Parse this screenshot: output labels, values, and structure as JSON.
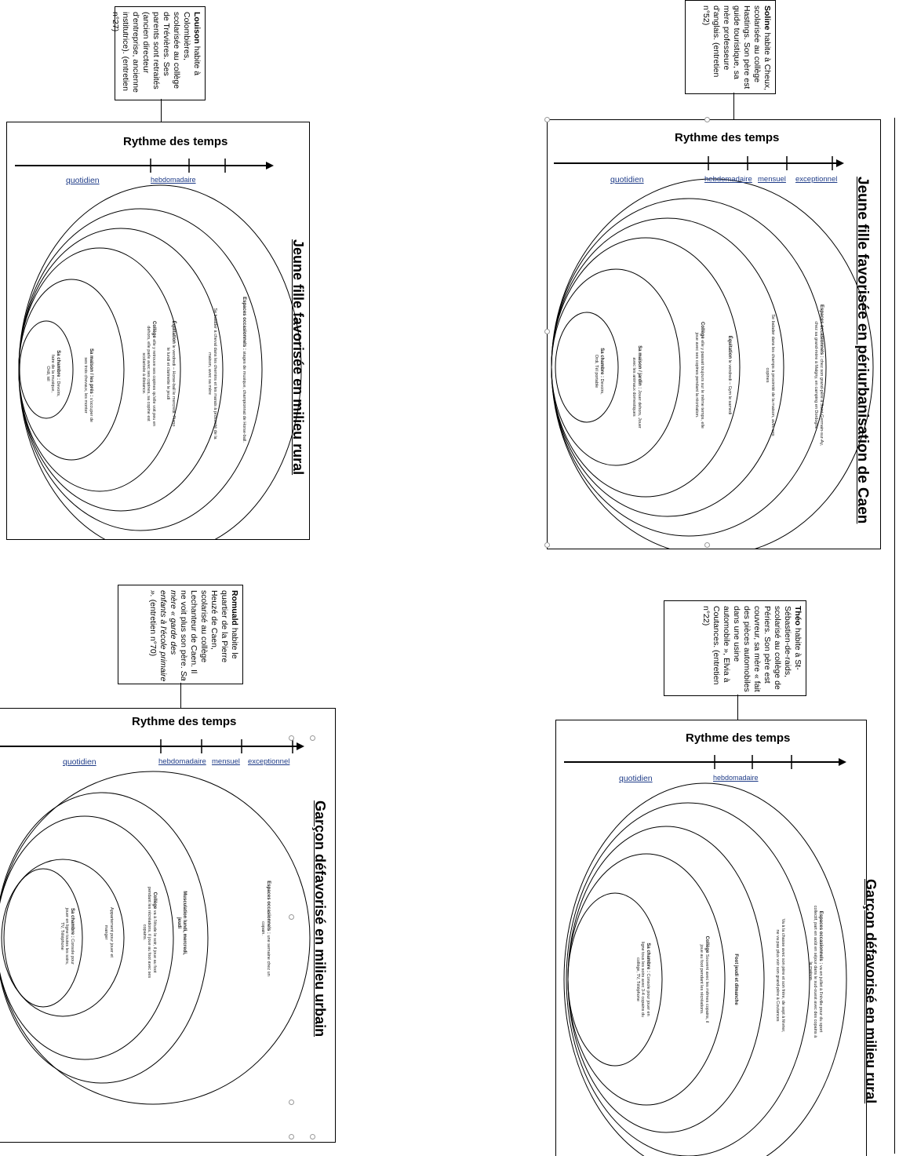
{
  "diagram_heading": "Rythme des temps",
  "scale_labels": {
    "daily": "quotidien",
    "weekly": "hebdomadaire",
    "monthly": "mensuel",
    "exceptional": "exceptionnel"
  },
  "panels": [
    {
      "id": "rural-girl",
      "title": "Jeune fille favorisée en milieu rural",
      "info": {
        "name": "Louison",
        "lines": [
          "habite à Colombières, scolarisée au collège de Trévières.",
          "Ses parents sont retraités (ancien directeur d'entreprise, ancienne institutrice).",
          "(entretien n°27)"
        ]
      },
      "rings": [
        {
          "title": "Espaces occasionnels :",
          "text": "stages de musique, championnat de Horse-ball."
        },
        {
          "title": "",
          "text": "Se balader à cheval dans les chemins et les marais à proximité de la maison, avec sa mère"
        },
        {
          "title": "Équitation",
          "text": "le vendredi – Horse-ball le mercredi. Piano le lundi et clarinette le jeudi"
        },
        {
          "title": "Collège",
          "text": "elle y retrouve ses copines qu'elle voit peu en dehors, elle parle avec ses copines, sa copine est scolarisée à distance."
        },
        {
          "title": "Sa maison / les prés :",
          "text": "s'occuper de ses trois chevaux, les monter"
        },
        {
          "title": "Sa chambre :",
          "text": "Devoirs, faire de la musique, Ordi, tél"
        }
      ]
    },
    {
      "id": "periurban-girl",
      "title": "Jeune fille favorisée en périurbanisation de Caen",
      "info": {
        "name": "Soline",
        "lines": [
          "habite à Cheux, scolarisée au collège Hastings.",
          "Son père est guide touristique, sa mère professeure d'anglais.",
          "(entretien n°52)"
        ]
      },
      "rings": [
        {
          "title": "Espaces occasionnels :",
          "text": "chez son grand-père à Saint-Germain-sur-Ay, chez sa grand-mère à Malgny, en camping en Dordogne"
        },
        {
          "title": "",
          "text": "Se balader dans les champs à proximité de la maison, avec ses copines"
        },
        {
          "title": "Équitation",
          "text": "le vendredi – Gym le samedi"
        },
        {
          "title": "Collège",
          "text": "elle y passait toujours sur le même temps, elle joue avec ses copines pendant la récréation."
        },
        {
          "title": "Sa maison / jardin :",
          "text": "Jouer dehors, Jouer avec les animaux domestiques"
        },
        {
          "title": "Sa chambre :",
          "text": "Devoirs, Ordi, Tél portable"
        }
      ]
    },
    {
      "id": "urban-boy",
      "title": "Garçon défavorisé en milieu urbain",
      "info": {
        "name": "Romuald",
        "lines": [
          "habite le quartier de la Pierre Heuzé de Caen, scolarisé au collège Lechanteur de Caen.",
          "Il ne voit plus son père.",
          "Sa mère « garde des enfants à l'école primaire ».",
          "(entretien n°70)"
        ]
      },
      "rings": [
        {
          "title": "Espaces occasionnels :",
          "text": "une semaine chez un copain."
        },
        {
          "title": "Musculation lundi, mercredi, jeudi",
          "text": ""
        },
        {
          "title": "Collège",
          "text": "va à l'étude le soir, il joue au foot pendant les récréations, il joue au foot avec ses copains."
        },
        {
          "title": "",
          "text": "Appartement pour jouer et manger"
        },
        {
          "title": "Sa chambre :",
          "text": "Console pour jouer en ligne toutes les soirs, TV, Téléphone"
        }
      ]
    },
    {
      "id": "rural-boy",
      "title": "Garçon défavorisé en milieu rural",
      "info": {
        "name": "Théo",
        "lines": [
          "habite à St-Sébastien-de-raids, scolarisé au collège de Périers.",
          "Son père est couvreur, sa mère « fait des pièces automobiles dans une usine automobile », Elvia à Coutances.",
          "(entretien n°22)"
        ]
      },
      "rings": [
        {
          "title": "Espaces occasionnels :",
          "text": "va en juillet à Fréville pour du sport collectif, part en août en séjour dans le sud-ouest avec des copains à la maison."
        },
        {
          "title": "",
          "text": "Va à la chasse avec son père et son frère, de sept à février, ne va pas plus voir son grand-père à Coutances"
        },
        {
          "title": "Foot jeudi et dimanche",
          "text": ""
        },
        {
          "title": "Collège",
          "text": "Souvent avec les mêmes copains, il joue au foot pendant les récréations."
        },
        {
          "title": "Sa chambre :",
          "text": "Console pour jouer en ligne tous les soirs avec 3-4 copains du collège, TV, Téléphone"
        }
      ]
    }
  ]
}
